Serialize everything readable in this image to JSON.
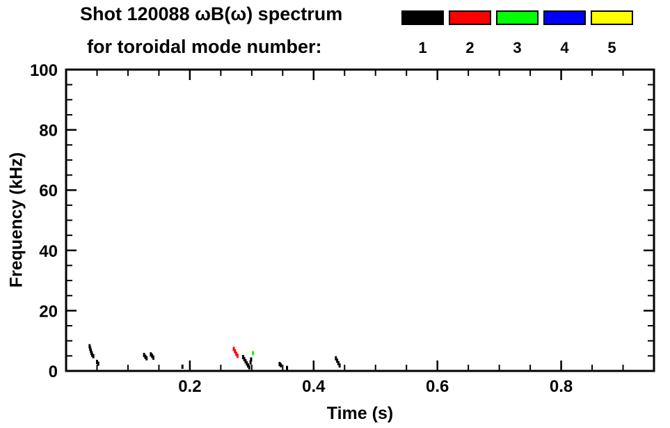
{
  "title": {
    "line1": "Shot 120088 ωB(ω) spectrum",
    "line2": "for toroidal mode number:"
  },
  "legend": {
    "modes": [
      {
        "label": "1",
        "color": "#000000"
      },
      {
        "label": "2",
        "color": "#ff0000"
      },
      {
        "label": "3",
        "color": "#00ff00"
      },
      {
        "label": "4",
        "color": "#0000ff"
      },
      {
        "label": "5",
        "color": "#ffff00"
      }
    ]
  },
  "chart_data": {
    "type": "scatter",
    "title": "Shot 120088 ωB(ω) spectrum for toroidal mode number: 1 2 3 4 5",
    "xlabel": "Time (s)",
    "ylabel": "Frequency (kHz)",
    "xlim": [
      0,
      0.95
    ],
    "ylim": [
      0,
      100
    ],
    "x_major_ticks": [
      0.2,
      0.4,
      0.6,
      0.8
    ],
    "x_major_tick_labels": [
      "0.2",
      "0.4",
      "0.6",
      "0.8"
    ],
    "x_minor_step": 0.05,
    "y_major_ticks": [
      0,
      20,
      40,
      60,
      80,
      100
    ],
    "y_major_tick_labels": [
      "0",
      "20",
      "40",
      "60",
      "80",
      "100"
    ],
    "y_minor_step": 5,
    "grid": false,
    "legend_position": "top-right",
    "series": [
      {
        "name": "n=1",
        "color": "#000000",
        "points": [
          [
            0.038,
            8.2
          ],
          [
            0.039,
            7.4
          ],
          [
            0.04,
            6.7
          ],
          [
            0.041,
            6.0
          ],
          [
            0.042,
            5.4
          ],
          [
            0.044,
            4.9
          ],
          [
            0.05,
            3.0
          ],
          [
            0.052,
            2.4
          ],
          [
            0.126,
            5.3
          ],
          [
            0.128,
            4.7
          ],
          [
            0.13,
            4.2
          ],
          [
            0.137,
            5.5
          ],
          [
            0.139,
            5.0
          ],
          [
            0.141,
            4.4
          ],
          [
            0.188,
            1.4
          ],
          [
            0.286,
            4.6
          ],
          [
            0.288,
            3.9
          ],
          [
            0.29,
            3.2
          ],
          [
            0.292,
            2.5
          ],
          [
            0.294,
            1.8
          ],
          [
            0.296,
            1.2
          ],
          [
            0.298,
            2.8
          ],
          [
            0.299,
            3.8
          ],
          [
            0.345,
            2.3
          ],
          [
            0.347,
            1.9
          ],
          [
            0.357,
            1.0
          ],
          [
            0.436,
            4.2
          ],
          [
            0.438,
            3.4
          ],
          [
            0.44,
            2.6
          ],
          [
            0.442,
            1.8
          ]
        ]
      },
      {
        "name": "n=2",
        "color": "#ff0000",
        "points": [
          [
            0.271,
            7.3
          ],
          [
            0.273,
            6.5
          ],
          [
            0.275,
            5.7
          ],
          [
            0.277,
            5.0
          ]
        ]
      },
      {
        "name": "n=3",
        "color": "#00ff00",
        "points": [
          [
            0.302,
            5.9
          ]
        ]
      },
      {
        "name": "n=4",
        "color": "#0000ff",
        "points": []
      },
      {
        "name": "n=5",
        "color": "#ffff00",
        "points": []
      }
    ]
  }
}
